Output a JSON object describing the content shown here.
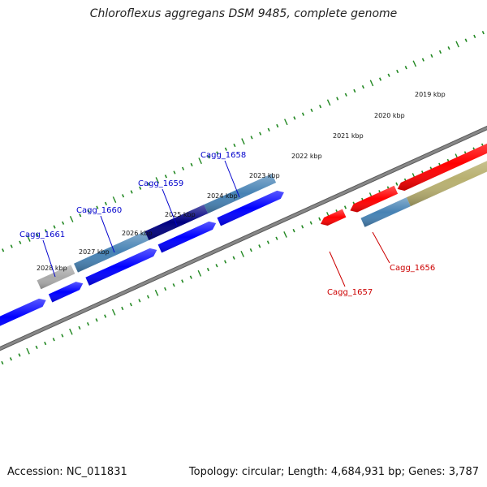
{
  "title": "Chloroflexus aggregans DSM 9485, complete genome",
  "footer": {
    "accession": "Accession: NC_011831",
    "topology": "Topology: circular; Length: 4,684,931 bp; Genes: 3,787"
  },
  "ruler": [
    "2019 kbp",
    "2020 kbp",
    "2021 kbp",
    "2022 kbp",
    "2023 kbp",
    "2024 kbp",
    "2025 kbp",
    "2026 kbp",
    "2027 kbp",
    "2028 kbp"
  ],
  "gene_labels": [
    {
      "name": "Cagg_1661",
      "strand": "plus"
    },
    {
      "name": "Cagg_1660",
      "strand": "plus"
    },
    {
      "name": "Cagg_1659",
      "strand": "plus"
    },
    {
      "name": "Cagg_1658",
      "strand": "plus"
    },
    {
      "name": "Cagg_1657",
      "strand": "minus"
    },
    {
      "name": "Cagg_1656",
      "strand": "minus"
    }
  ],
  "colors": {
    "plus_label": "#0000cc",
    "minus_label": "#cc0000",
    "ticks": "#228822",
    "backbone": "#888888",
    "cds": "#0000ff",
    "gene_plus": "#4682b4",
    "gene_highlight": "#000080",
    "gene_other": "#aaaaaa",
    "cds_minus": "#ff0000",
    "gene_minus_alt": "#b8b070"
  }
}
